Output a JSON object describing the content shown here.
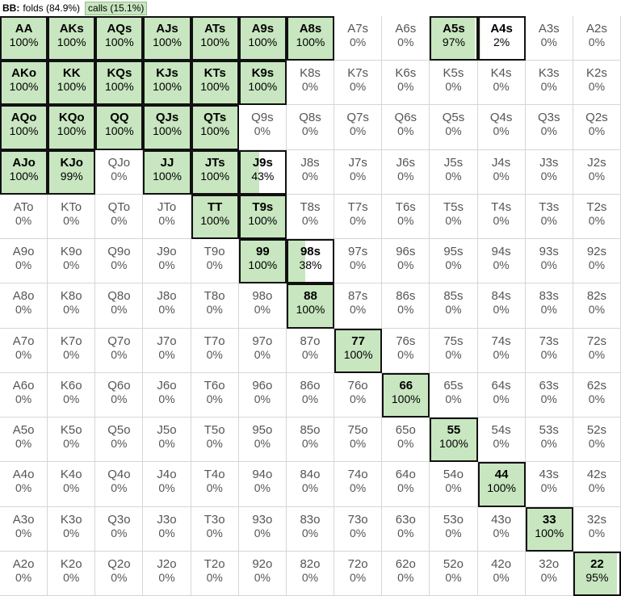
{
  "header": {
    "label": "BB:",
    "folds_label": "folds (84.9%)",
    "calls_label": "calls (15.1%)"
  },
  "colors": {
    "call": "#c8e6c0",
    "border_active": "#111111"
  },
  "grid": {
    "rows": [
      [
        [
          "AA",
          100
        ],
        [
          "AKs",
          100
        ],
        [
          "AQs",
          100
        ],
        [
          "AJs",
          100
        ],
        [
          "ATs",
          100
        ],
        [
          "A9s",
          100
        ],
        [
          "A8s",
          100
        ],
        [
          "A7s",
          0
        ],
        [
          "A6s",
          0
        ],
        [
          "A5s",
          97
        ],
        [
          "A4s",
          2
        ],
        [
          "A3s",
          0
        ],
        [
          "A2s",
          0
        ]
      ],
      [
        [
          "AKo",
          100
        ],
        [
          "KK",
          100
        ],
        [
          "KQs",
          100
        ],
        [
          "KJs",
          100
        ],
        [
          "KTs",
          100
        ],
        [
          "K9s",
          100
        ],
        [
          "K8s",
          0
        ],
        [
          "K7s",
          0
        ],
        [
          "K6s",
          0
        ],
        [
          "K5s",
          0
        ],
        [
          "K4s",
          0
        ],
        [
          "K3s",
          0
        ],
        [
          "K2s",
          0
        ]
      ],
      [
        [
          "AQo",
          100
        ],
        [
          "KQo",
          100
        ],
        [
          "QQ",
          100
        ],
        [
          "QJs",
          100
        ],
        [
          "QTs",
          100
        ],
        [
          "Q9s",
          0
        ],
        [
          "Q8s",
          0
        ],
        [
          "Q7s",
          0
        ],
        [
          "Q6s",
          0
        ],
        [
          "Q5s",
          0
        ],
        [
          "Q4s",
          0
        ],
        [
          "Q3s",
          0
        ],
        [
          "Q2s",
          0
        ]
      ],
      [
        [
          "AJo",
          100
        ],
        [
          "KJo",
          99
        ],
        [
          "QJo",
          0
        ],
        [
          "JJ",
          100
        ],
        [
          "JTs",
          100
        ],
        [
          "J9s",
          43
        ],
        [
          "J8s",
          0
        ],
        [
          "J7s",
          0
        ],
        [
          "J6s",
          0
        ],
        [
          "J5s",
          0
        ],
        [
          "J4s",
          0
        ],
        [
          "J3s",
          0
        ],
        [
          "J2s",
          0
        ]
      ],
      [
        [
          "ATo",
          0
        ],
        [
          "KTo",
          0
        ],
        [
          "QTo",
          0
        ],
        [
          "JTo",
          0
        ],
        [
          "TT",
          100
        ],
        [
          "T9s",
          100
        ],
        [
          "T8s",
          0
        ],
        [
          "T7s",
          0
        ],
        [
          "T6s",
          0
        ],
        [
          "T5s",
          0
        ],
        [
          "T4s",
          0
        ],
        [
          "T3s",
          0
        ],
        [
          "T2s",
          0
        ]
      ],
      [
        [
          "A9o",
          0
        ],
        [
          "K9o",
          0
        ],
        [
          "Q9o",
          0
        ],
        [
          "J9o",
          0
        ],
        [
          "T9o",
          0
        ],
        [
          "99",
          100
        ],
        [
          "98s",
          38
        ],
        [
          "97s",
          0
        ],
        [
          "96s",
          0
        ],
        [
          "95s",
          0
        ],
        [
          "94s",
          0
        ],
        [
          "93s",
          0
        ],
        [
          "92s",
          0
        ]
      ],
      [
        [
          "A8o",
          0
        ],
        [
          "K8o",
          0
        ],
        [
          "Q8o",
          0
        ],
        [
          "J8o",
          0
        ],
        [
          "T8o",
          0
        ],
        [
          "98o",
          0
        ],
        [
          "88",
          100
        ],
        [
          "87s",
          0
        ],
        [
          "86s",
          0
        ],
        [
          "85s",
          0
        ],
        [
          "84s",
          0
        ],
        [
          "83s",
          0
        ],
        [
          "82s",
          0
        ]
      ],
      [
        [
          "A7o",
          0
        ],
        [
          "K7o",
          0
        ],
        [
          "Q7o",
          0
        ],
        [
          "J7o",
          0
        ],
        [
          "T7o",
          0
        ],
        [
          "97o",
          0
        ],
        [
          "87o",
          0
        ],
        [
          "77",
          100
        ],
        [
          "76s",
          0
        ],
        [
          "75s",
          0
        ],
        [
          "74s",
          0
        ],
        [
          "73s",
          0
        ],
        [
          "72s",
          0
        ]
      ],
      [
        [
          "A6o",
          0
        ],
        [
          "K6o",
          0
        ],
        [
          "Q6o",
          0
        ],
        [
          "J6o",
          0
        ],
        [
          "T6o",
          0
        ],
        [
          "96o",
          0
        ],
        [
          "86o",
          0
        ],
        [
          "76o",
          0
        ],
        [
          "66",
          100
        ],
        [
          "65s",
          0
        ],
        [
          "64s",
          0
        ],
        [
          "63s",
          0
        ],
        [
          "62s",
          0
        ]
      ],
      [
        [
          "A5o",
          0
        ],
        [
          "K5o",
          0
        ],
        [
          "Q5o",
          0
        ],
        [
          "J5o",
          0
        ],
        [
          "T5o",
          0
        ],
        [
          "95o",
          0
        ],
        [
          "85o",
          0
        ],
        [
          "75o",
          0
        ],
        [
          "65o",
          0
        ],
        [
          "55",
          100
        ],
        [
          "54s",
          0
        ],
        [
          "53s",
          0
        ],
        [
          "52s",
          0
        ]
      ],
      [
        [
          "A4o",
          0
        ],
        [
          "K4o",
          0
        ],
        [
          "Q4o",
          0
        ],
        [
          "J4o",
          0
        ],
        [
          "T4o",
          0
        ],
        [
          "94o",
          0
        ],
        [
          "84o",
          0
        ],
        [
          "74o",
          0
        ],
        [
          "64o",
          0
        ],
        [
          "54o",
          0
        ],
        [
          "44",
          100
        ],
        [
          "43s",
          0
        ],
        [
          "42s",
          0
        ]
      ],
      [
        [
          "A3o",
          0
        ],
        [
          "K3o",
          0
        ],
        [
          "Q3o",
          0
        ],
        [
          "J3o",
          0
        ],
        [
          "T3o",
          0
        ],
        [
          "93o",
          0
        ],
        [
          "83o",
          0
        ],
        [
          "73o",
          0
        ],
        [
          "63o",
          0
        ],
        [
          "53o",
          0
        ],
        [
          "43o",
          0
        ],
        [
          "33",
          100
        ],
        [
          "32s",
          0
        ]
      ],
      [
        [
          "A2o",
          0
        ],
        [
          "K2o",
          0
        ],
        [
          "Q2o",
          0
        ],
        [
          "J2o",
          0
        ],
        [
          "T2o",
          0
        ],
        [
          "92o",
          0
        ],
        [
          "82o",
          0
        ],
        [
          "72o",
          0
        ],
        [
          "62o",
          0
        ],
        [
          "52o",
          0
        ],
        [
          "42o",
          0
        ],
        [
          "32o",
          0
        ],
        [
          "22",
          95
        ]
      ]
    ]
  }
}
